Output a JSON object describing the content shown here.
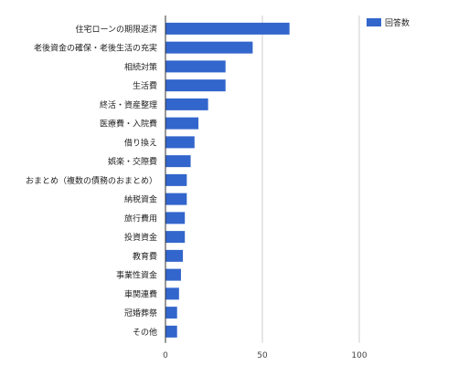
{
  "chart_data": {
    "type": "bar",
    "orientation": "horizontal",
    "categories": [
      "住宅ローンの期限返済",
      "老後資金の確保・老後生活の充実",
      "相続対策",
      "生活費",
      "終活・資産整理",
      "医療費・入院費",
      "借り換え",
      "娯楽・交際費",
      "おまとめ（複数の債務のおまとめ）",
      "納税資金",
      "旅行費用",
      "投資資金",
      "教育費",
      "事業性資金",
      "車関連費",
      "冠婚葬祭",
      "その他"
    ],
    "series": [
      {
        "name": "回答数",
        "values": [
          64,
          45,
          31,
          31,
          22,
          17,
          15,
          13,
          11,
          11,
          10,
          10,
          9,
          8,
          7,
          6,
          6
        ]
      }
    ],
    "xlim": [
      0,
      100
    ],
    "xticks": [
      0,
      50,
      100
    ],
    "grid": true,
    "legend": "top-right",
    "colors": {
      "bar": "#3366cc",
      "grid": "#cccccc",
      "axis": "#333333"
    }
  }
}
